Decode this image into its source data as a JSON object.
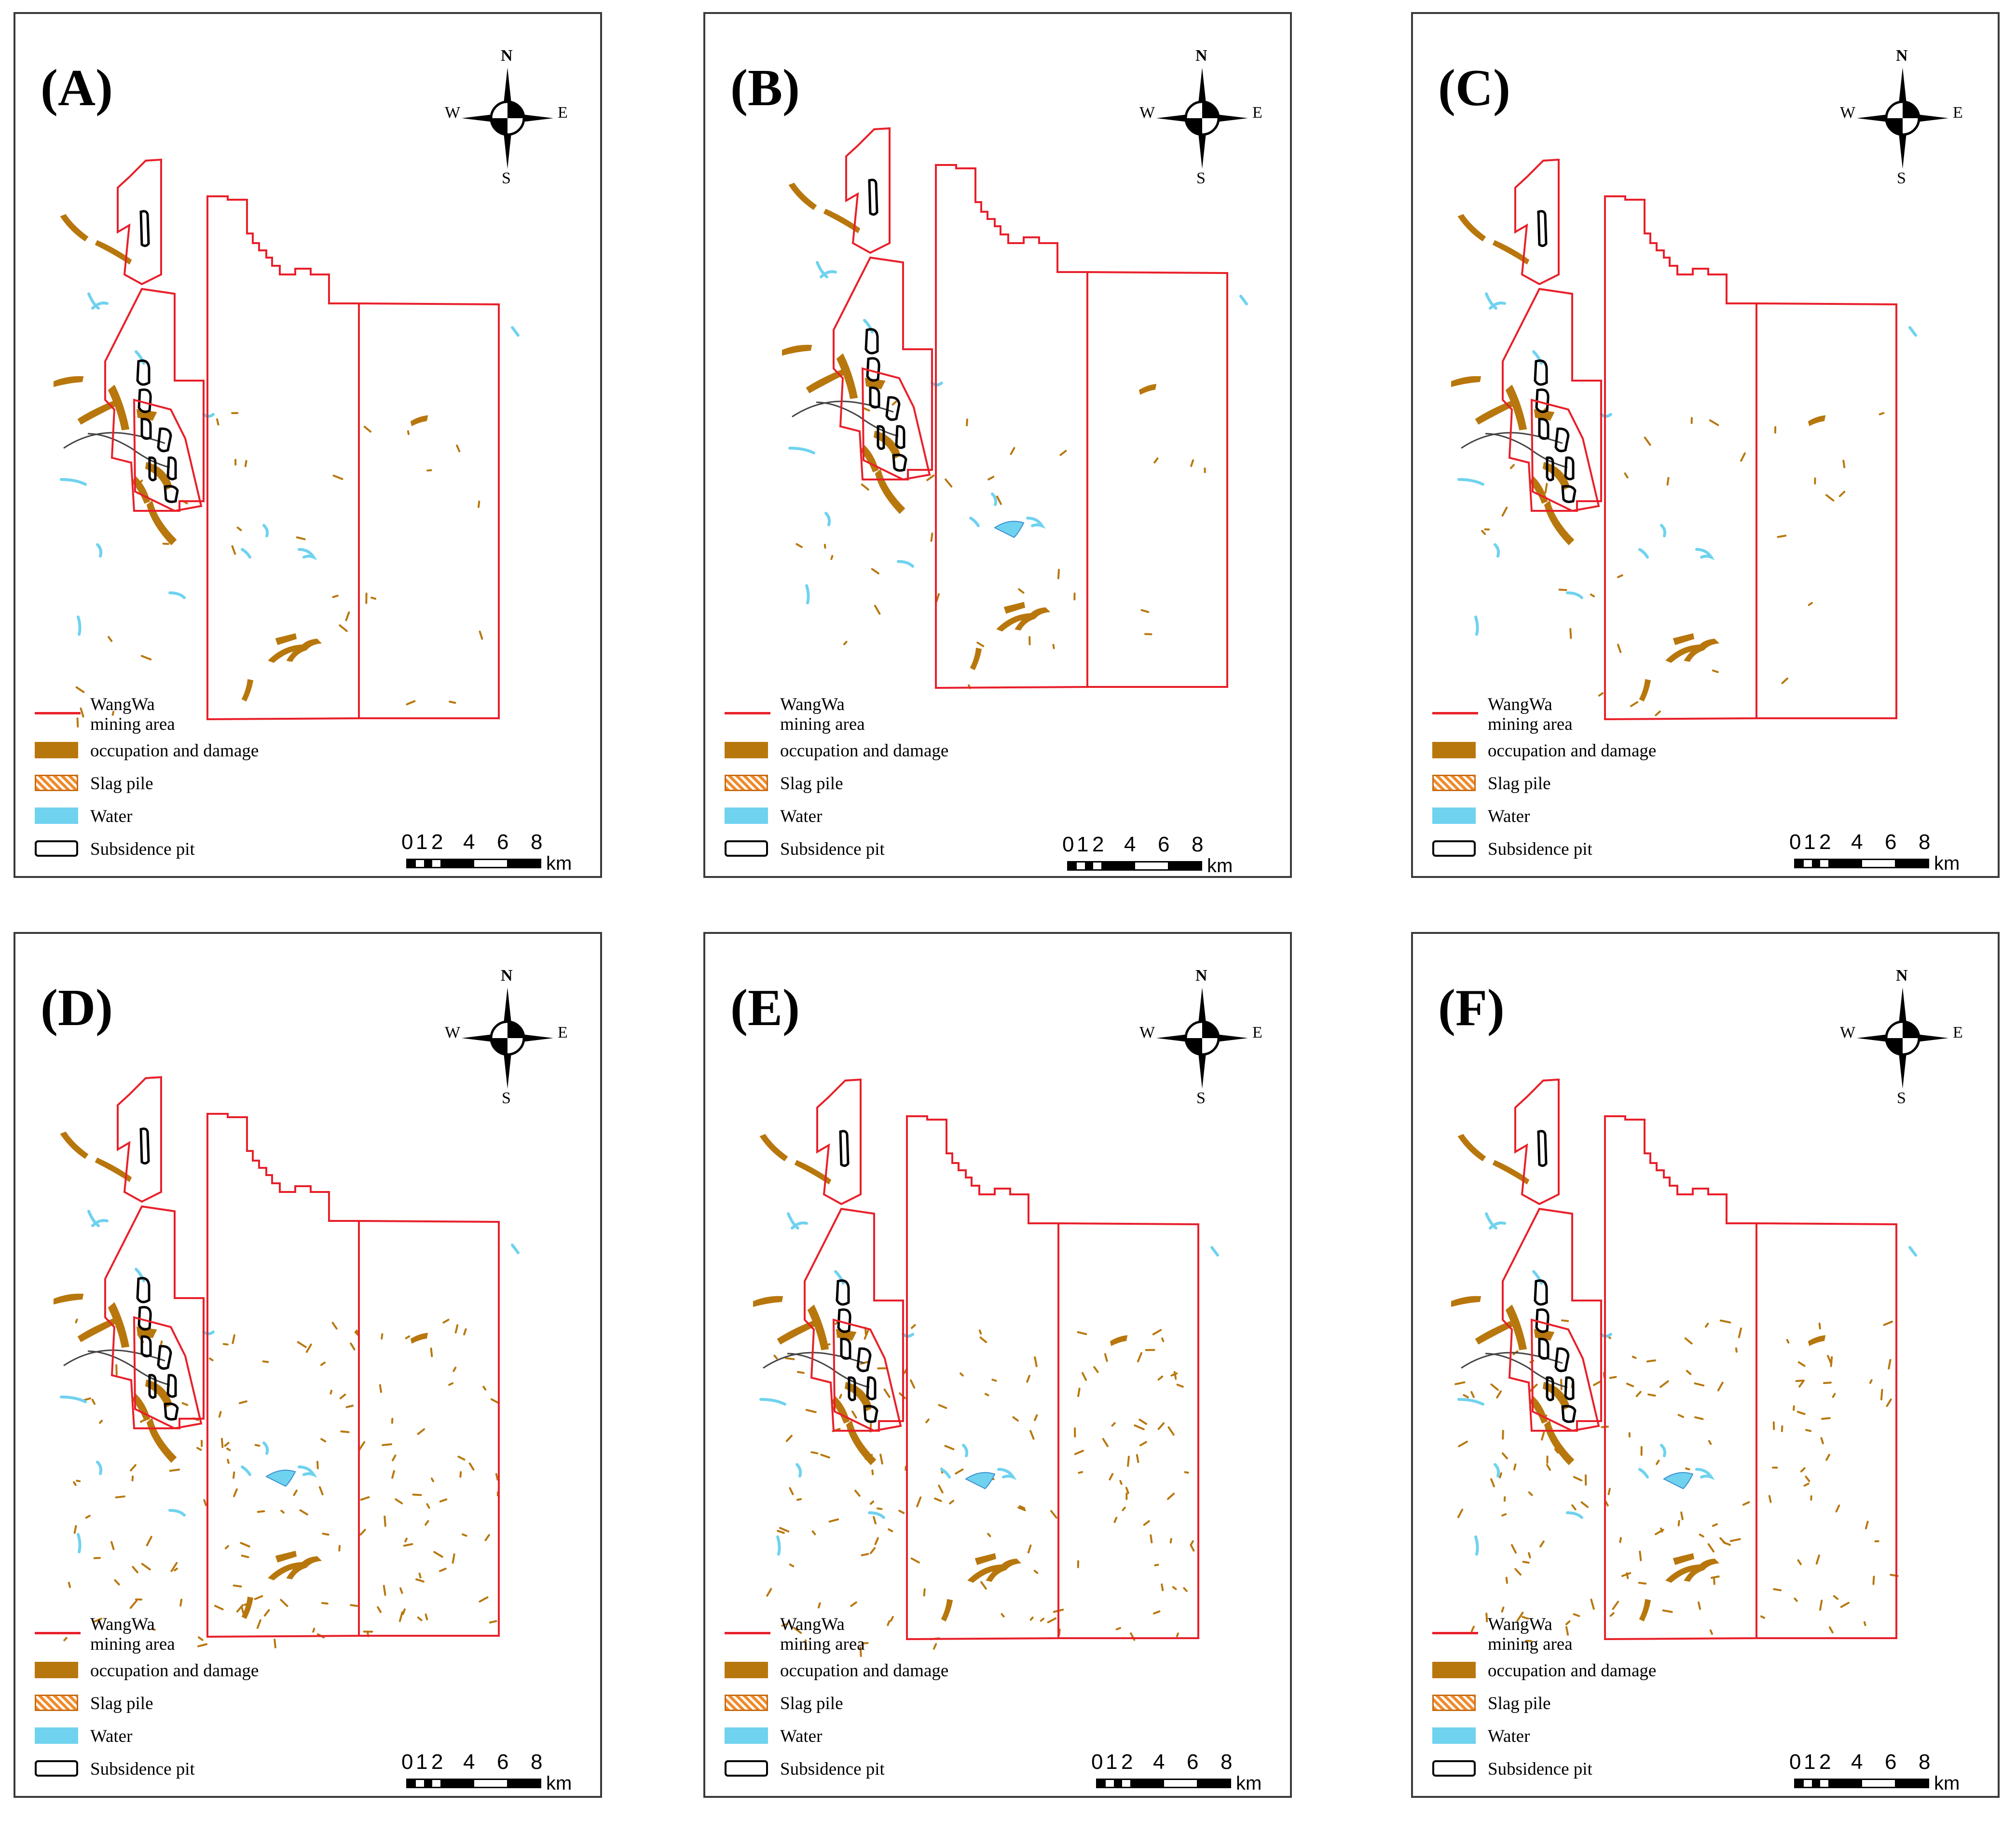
{
  "panels": [
    {
      "id": "A",
      "label": "(A)"
    },
    {
      "id": "B",
      "label": "(B)"
    },
    {
      "id": "C",
      "label": "(C)"
    },
    {
      "id": "D",
      "label": "(D)"
    },
    {
      "id": "E",
      "label": "(E)"
    },
    {
      "id": "F",
      "label": "(F)"
    }
  ],
  "compass": {
    "north": "N",
    "south": "S",
    "west": "W",
    "east": "E"
  },
  "legend": {
    "boundary_line1": "WangWa",
    "boundary_line2": "mining area",
    "damage": "occupation and damage",
    "slag": "Slag pile",
    "water": "Water",
    "pit": "Subsidence pit"
  },
  "scale_bar": {
    "ticks": [
      "0",
      "1",
      "2",
      "4",
      "6",
      "8"
    ],
    "unit": "km"
  },
  "colors": {
    "boundary": "#e8202a",
    "damage": "#b8770d",
    "slag": "#f08a2a",
    "water": "#6fd2ef",
    "pit": "#000000"
  }
}
